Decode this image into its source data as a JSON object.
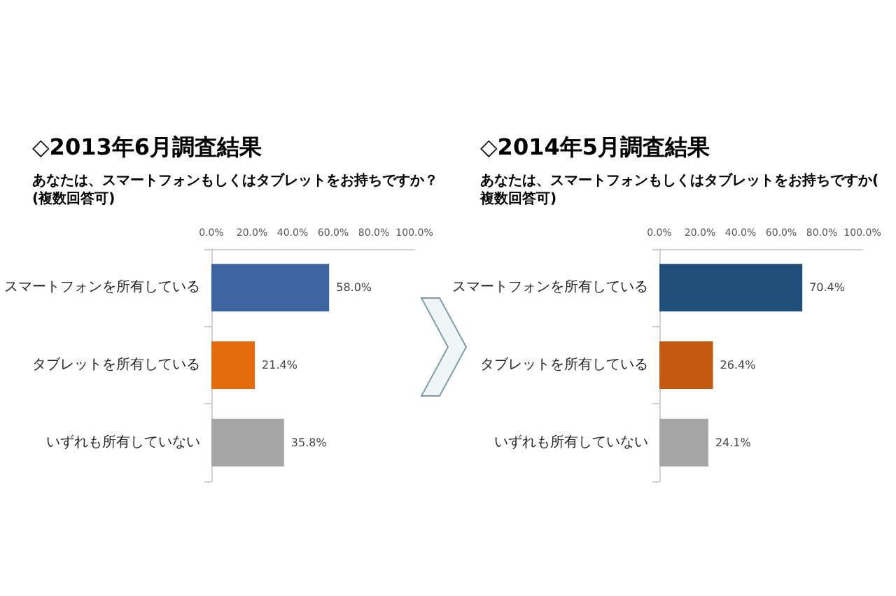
{
  "chart_data": [
    {
      "type": "bar",
      "orientation": "horizontal",
      "title": "◇2013年6月調査結果",
      "subtitle": "あなたは、スマートフォンもしくはタブレットをお持ちですか？(複数回答可)",
      "categories": [
        "スマートフォンを所有している",
        "タブレットを所有している",
        "いずれも所有していない"
      ],
      "values": [
        58.0,
        21.4,
        35.8
      ],
      "colors": [
        "#3c65a0",
        "#e46c0a",
        "#a6a6a6"
      ],
      "value_labels": [
        "58.0%",
        "21.4%",
        "35.8%"
      ],
      "xlim": [
        0,
        100
      ],
      "xticks": [
        {
          "value": 0,
          "label": "0.0%"
        },
        {
          "value": 20,
          "label": "20.0%"
        },
        {
          "value": 40,
          "label": "40.0%"
        },
        {
          "value": 60,
          "label": "60.0%"
        },
        {
          "value": 80,
          "label": "80.0%"
        },
        {
          "value": 100,
          "label": "100.0%"
        }
      ]
    },
    {
      "type": "bar",
      "orientation": "horizontal",
      "title": "◇2014年5月調査結果",
      "subtitle": "あなたは、スマートフォンもしくはタブレットをお持ちですか(複数回答可)",
      "categories": [
        "スマートフォンを所有している",
        "タブレットを所有している",
        "いずれも所有していない"
      ],
      "values": [
        70.4,
        26.4,
        24.1
      ],
      "colors": [
        "#1f4e79",
        "#c55a11",
        "#a6a6a6"
      ],
      "value_labels": [
        "70.4%",
        "26.4%",
        "24.1%"
      ],
      "xlim": [
        0,
        100
      ],
      "xticks": [
        {
          "value": 0,
          "label": "0.0%"
        },
        {
          "value": 20,
          "label": "20.0%"
        },
        {
          "value": 40,
          "label": "40.0%"
        },
        {
          "value": 60,
          "label": "60.0%"
        },
        {
          "value": 80,
          "label": "80.0%"
        },
        {
          "value": 100,
          "label": "100.0%"
        }
      ]
    }
  ]
}
